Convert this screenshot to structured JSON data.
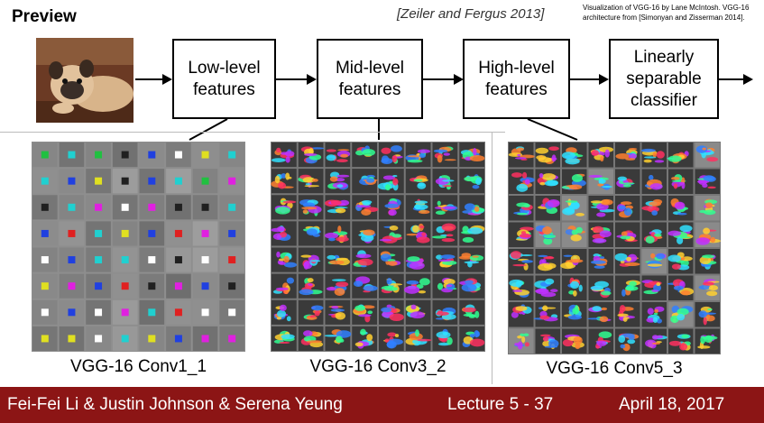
{
  "title": "Preview",
  "citation": "[Zeiler and Fergus 2013]",
  "credit": "Visualization of VGG-16 by Lane McIntosh. VGG-16 architecture from [Simonyan and Zisserman 2014].",
  "boxes": [
    {
      "label": "Low-level\nfeatures"
    },
    {
      "label": "Mid-level\nfeatures"
    },
    {
      "label": "High-level\nfeatures"
    },
    {
      "label": "Linearly\nseparable\nclassifier"
    }
  ],
  "panels": [
    {
      "caption": "VGG-16 Conv1_1"
    },
    {
      "caption": "VGG-16 Conv3_2"
    },
    {
      "caption": "VGG-16 Conv5_3"
    }
  ],
  "footer": {
    "authors": "Fei-Fei Li & Justin Johnson & Serena Yeung",
    "lecture": "Lecture 5 - 37",
    "date": "April 18, 2017"
  },
  "colors": {
    "footer_bg": "#8c1515"
  }
}
